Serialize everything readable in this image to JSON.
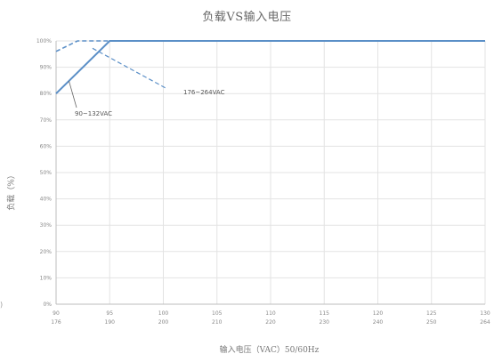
{
  "chart_data": {
    "type": "line",
    "title": "负载VS输入电压",
    "xlabel": "输入电压（VAC）50/60Hz",
    "ylabel": "负载（%）",
    "x_ticks_low": [
      "90",
      "95",
      "100",
      "105",
      "110",
      "115",
      "120",
      "125",
      "130"
    ],
    "x_ticks_high": [
      "176",
      "190",
      "200",
      "210",
      "220",
      "230",
      "240",
      "250",
      "264"
    ],
    "xlim": [
      90,
      130
    ],
    "y_ticks": [
      "0%",
      "10%",
      "20%",
      "30%",
      "40%",
      "50%",
      "60%",
      "70%",
      "80%",
      "90%",
      "100%"
    ],
    "ylim": [
      0,
      100
    ],
    "grid": true,
    "series": [
      {
        "name": "90~132VAC",
        "x": [
          90,
          95,
          130
        ],
        "y": [
          80,
          100,
          100
        ],
        "style": "solid",
        "color": "#5b8fc7"
      },
      {
        "name": "176~264VAC",
        "x": [
          90,
          92,
          130
        ],
        "y": [
          96,
          100,
          100
        ],
        "style": "dashed",
        "color": "#5b8fc7"
      }
    ],
    "annotations": [
      {
        "text": "90~132VAC",
        "series": 0
      },
      {
        "text": "176~264VAC",
        "series": 1
      }
    ]
  },
  "stray_mark": ")"
}
